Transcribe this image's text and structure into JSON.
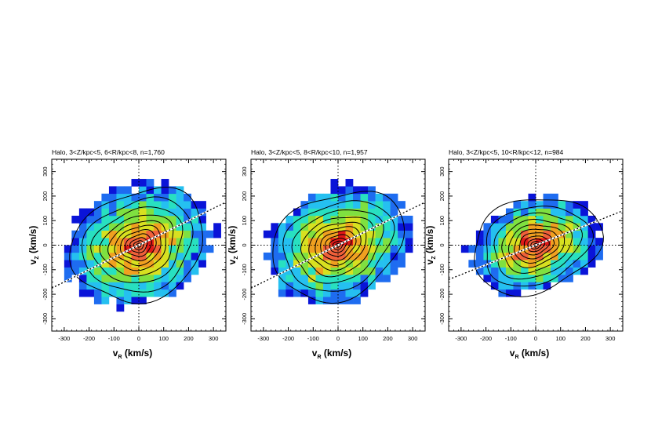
{
  "chart_data": [
    {
      "type": "heatmap",
      "title": "Halo, 3<Z/kpc<5, 6<R/kpc<8, n=1,760",
      "xlabel": "v",
      "xlabel_sub": "R",
      "xlabel_unit": "(km/s)",
      "ylabel": "v",
      "ylabel_sub": "Z",
      "ylabel_unit": "(km/s)",
      "xlim": [
        -350,
        350
      ],
      "ylim": [
        -350,
        350
      ],
      "xticks": [
        -300,
        -200,
        -100,
        0,
        100,
        200,
        300
      ],
      "yticks": [
        -300,
        -200,
        -100,
        0,
        100,
        200,
        300
      ],
      "sigma_r": 120,
      "sigma_z": 95,
      "tilt_deg": 24,
      "occupancy_scale": 1.0,
      "fit_line": {
        "slope": 0.5,
        "intercept": 0
      },
      "contour_levels": [
        0.08,
        0.18,
        0.3,
        0.45,
        0.62,
        0.8,
        1.0,
        1.25,
        1.55,
        1.9,
        2.3
      ]
    },
    {
      "type": "heatmap",
      "title": "Halo, 3<Z/kpc<5, 8<R/kpc<10, n=1,957",
      "xlabel": "v",
      "xlabel_sub": "R",
      "xlabel_unit": "(km/s)",
      "ylabel": "v",
      "ylabel_sub": "Z",
      "ylabel_unit": "(km/s)",
      "xlim": [
        -350,
        350
      ],
      "ylim": [
        -350,
        350
      ],
      "xticks": [
        -300,
        -200,
        -100,
        0,
        100,
        200,
        300
      ],
      "yticks": [
        -300,
        -200,
        -100,
        0,
        100,
        200,
        300
      ],
      "sigma_r": 120,
      "sigma_z": 90,
      "tilt_deg": 26,
      "occupancy_scale": 1.0,
      "fit_line": {
        "slope": 0.5,
        "intercept": 0
      },
      "contour_levels": [
        0.08,
        0.18,
        0.3,
        0.45,
        0.62,
        0.8,
        1.0,
        1.25,
        1.55,
        1.9,
        2.3
      ]
    },
    {
      "type": "heatmap",
      "title": "Halo, 3<Z/kpc<5, 10<R/kpc<12, n=984",
      "xlabel": "v",
      "xlabel_sub": "R",
      "xlabel_unit": "(km/s)",
      "ylabel": "v",
      "ylabel_sub": "Z",
      "ylabel_unit": "(km/s)",
      "xlim": [
        -350,
        350
      ],
      "ylim": [
        -350,
        350
      ],
      "xticks": [
        -300,
        -200,
        -100,
        0,
        100,
        200,
        300
      ],
      "yticks": [
        -300,
        -200,
        -100,
        0,
        100,
        200,
        300
      ],
      "sigma_r": 115,
      "sigma_z": 82,
      "tilt_deg": 18,
      "occupancy_scale": 0.92,
      "fit_line": {
        "slope": 0.4,
        "intercept": 0
      },
      "contour_levels": [
        0.08,
        0.18,
        0.3,
        0.45,
        0.62,
        0.8,
        1.0,
        1.25,
        1.55,
        1.9,
        2.3
      ]
    }
  ],
  "colors": {
    "bins": [
      "#0a14d8",
      "#1e6cf0",
      "#25c0f0",
      "#28e0c0",
      "#7fe040",
      "#d8e020",
      "#f0a020",
      "#f0603a",
      "#e01818"
    ],
    "contour": "#000000",
    "dotted": "#000000"
  }
}
